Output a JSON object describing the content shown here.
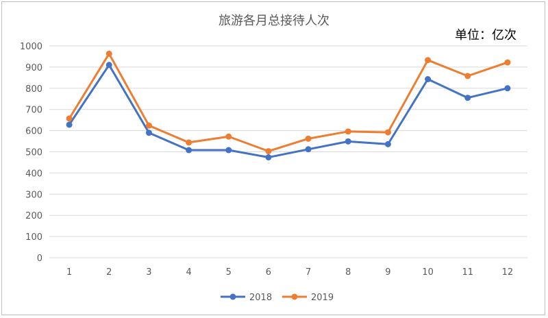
{
  "chart_data": {
    "type": "line",
    "title": "旅游各月总接待人次",
    "unit_label": "单位：亿次",
    "categories": [
      "1",
      "2",
      "3",
      "4",
      "5",
      "6",
      "7",
      "8",
      "9",
      "10",
      "11",
      "12"
    ],
    "y_ticks": [
      "0",
      "100",
      "200",
      "300",
      "400",
      "500",
      "600",
      "700",
      "800",
      "900",
      "1000"
    ],
    "ylim": [
      0,
      1000
    ],
    "grid": true,
    "legend_position": "bottom",
    "series": [
      {
        "name": "2018",
        "color": "#4472c4",
        "values": [
          628,
          910,
          590,
          508,
          508,
          474,
          512,
          549,
          536,
          843,
          755,
          800
        ]
      },
      {
        "name": "2019",
        "color": "#ed7d31",
        "values": [
          657,
          963,
          624,
          544,
          572,
          503,
          562,
          596,
          592,
          933,
          858,
          922
        ]
      }
    ]
  }
}
